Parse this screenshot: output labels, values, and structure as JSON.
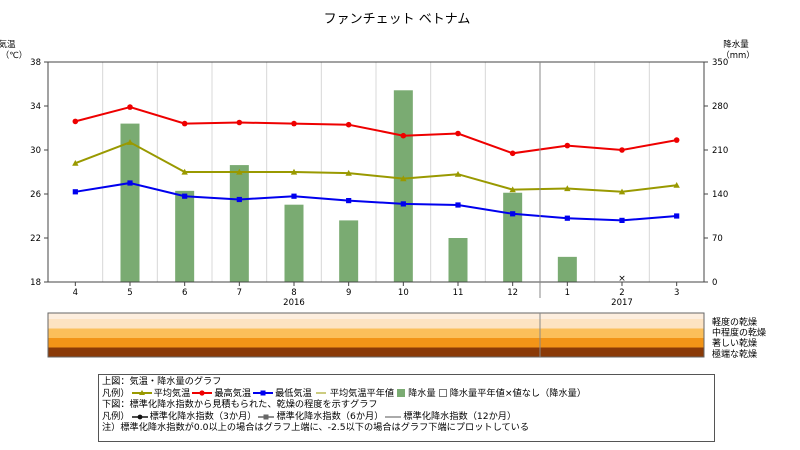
{
  "chart_data": {
    "type": "bar+line",
    "title": "ファンチェット ベトナム",
    "y_left_label_1": "気温",
    "y_left_label_2": "（℃）",
    "y_right_label_1": "降水量",
    "y_right_label_2": "（mm）",
    "ylim_left": [
      18,
      38
    ],
    "yticks_left": [
      18,
      22,
      26,
      30,
      34,
      38
    ],
    "ylim_right": [
      0,
      350
    ],
    "yticks_right": [
      0,
      70,
      140,
      210,
      280,
      350
    ],
    "categories": [
      "4",
      "5",
      "6",
      "7",
      "8",
      "9",
      "10",
      "11",
      "12",
      "1",
      "2",
      "3"
    ],
    "year_labels": [
      {
        "label": "2016",
        "at_index": 4
      },
      {
        "label": "2017",
        "at_index": 10
      }
    ],
    "year_divider_before_index": 9,
    "grid": "vertical",
    "series": [
      {
        "name": "降水量",
        "kind": "bar",
        "axis": "right",
        "color": "#7aab72",
        "values": [
          null,
          252,
          145,
          186,
          123,
          98,
          305,
          70,
          142,
          40,
          null,
          null
        ]
      },
      {
        "name": "最高気温",
        "kind": "line",
        "axis": "left",
        "color": "#ee0000",
        "values": [
          32.6,
          33.9,
          32.4,
          32.5,
          32.4,
          32.3,
          31.3,
          31.5,
          29.7,
          30.4,
          30.0,
          30.9
        ]
      },
      {
        "name": "平均気温",
        "kind": "line",
        "axis": "left",
        "color": "#999900",
        "values": [
          28.8,
          30.7,
          28.0,
          28.0,
          28.0,
          27.9,
          27.4,
          27.8,
          26.4,
          26.5,
          26.2,
          26.8
        ]
      },
      {
        "name": "最低気温",
        "kind": "line",
        "axis": "left",
        "color": "#0000ee",
        "values": [
          26.2,
          27.0,
          25.8,
          25.5,
          25.8,
          25.4,
          25.1,
          25.0,
          24.2,
          23.8,
          23.6,
          24.0
        ]
      }
    ],
    "missing_marks": [
      {
        "index": 10,
        "symbol": "×"
      }
    ],
    "drought_panel": {
      "levels": [
        "軽度の乾燥",
        "中程度の乾燥",
        "著しい乾燥",
        "極端な乾燥"
      ],
      "colors": [
        "#fde3c2",
        "#fbbf5a",
        "#f29417",
        "#8a3a08"
      ]
    }
  },
  "legend": {
    "line1": "上図：気温・降水量のグラフ",
    "line2_prefix": "凡例）",
    "avg_temp": "平均気温",
    "max_temp": "最高気温",
    "min_temp": "最低気温",
    "avg_temp_normal": "平均気温平年値",
    "precip": "降水量",
    "precip_normal": "降水量平年値",
    "no_value": "×値なし（降水量）",
    "line3": "下図：標準化降水指数から見積もられた、乾燥の程度を示すグラフ",
    "line4_prefix": "凡例）",
    "spi3": "標準化降水指数（3か月）",
    "spi6": "標準化降水指数（6か月）",
    "spi12": "標準化降水指数（12か月）",
    "note": "注）標準化降水指数が0.0以上の場合はグラフ上端に、-2.5以下の場合はグラフ下端にプロットしている"
  },
  "colors": {
    "max": "#ee0000",
    "avg": "#999900",
    "min": "#0000ee",
    "precip": "#7aab72",
    "spi3": "#111111",
    "spi6": "#666666",
    "spi12": "#aaaaaa"
  }
}
